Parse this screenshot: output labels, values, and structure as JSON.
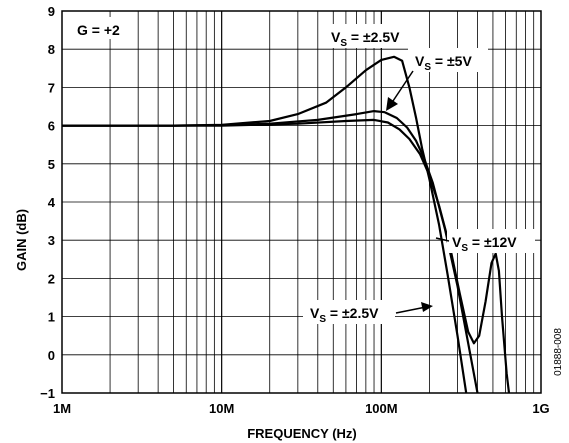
{
  "chart_data": {
    "type": "line",
    "xlabel": "FREQUENCY (Hz)",
    "ylabel": "GAIN (dB)",
    "xscale": "log",
    "xlim": [
      1000000,
      1000000000
    ],
    "ylim": [
      -1,
      9
    ],
    "x_tick_labels": [
      "1M",
      "10M",
      "100M",
      "1G"
    ],
    "x_tick_values": [
      1000000,
      10000000,
      100000000,
      1000000000
    ],
    "y_tick_labels": [
      "−1",
      "0",
      "1",
      "2",
      "3",
      "4",
      "5",
      "6",
      "7",
      "8",
      "9"
    ],
    "y_tick_values": [
      -1,
      0,
      1,
      2,
      3,
      4,
      5,
      6,
      7,
      8,
      9
    ],
    "grid": true,
    "annotations": {
      "gain_setting": "G = +2",
      "label_25v_top": {
        "prefix": "V",
        "sub": "S",
        "suffix": " = ±2.5V"
      },
      "label_5v": {
        "prefix": "V",
        "sub": "S",
        "suffix": " = ±5V"
      },
      "label_12v": {
        "prefix": "V",
        "sub": "S",
        "suffix": " = ±12V"
      },
      "label_25v_bottom": {
        "prefix": "V",
        "sub": "S",
        "suffix": " = ±2.5V"
      }
    },
    "figure_id": "01888-008",
    "series": [
      {
        "points": [
          [
            1000000,
            6.0
          ],
          [
            5000000,
            6.0
          ],
          [
            10000000,
            6.02
          ],
          [
            20000000,
            6.12
          ],
          [
            30000000,
            6.3
          ],
          [
            45000000,
            6.6
          ],
          [
            60000000,
            7.0
          ],
          [
            80000000,
            7.45
          ],
          [
            100000000,
            7.72
          ],
          [
            120000000,
            7.8
          ],
          [
            135000000,
            7.7
          ],
          [
            150000000,
            7.0
          ],
          [
            165000000,
            6.2
          ],
          [
            180000000,
            5.4
          ],
          [
            200000000,
            4.6
          ],
          [
            230000000,
            3.4
          ],
          [
            260000000,
            2.1
          ],
          [
            300000000,
            0.5
          ],
          [
            340000000,
            -1.0
          ]
        ]
      },
      {
        "points": [
          [
            1000000,
            6.0
          ],
          [
            5000000,
            6.0
          ],
          [
            10000000,
            6.01
          ],
          [
            20000000,
            6.05
          ],
          [
            40000000,
            6.15
          ],
          [
            70000000,
            6.3
          ],
          [
            90000000,
            6.38
          ],
          [
            105000000,
            6.35
          ],
          [
            125000000,
            6.2
          ],
          [
            145000000,
            5.95
          ],
          [
            165000000,
            5.6
          ],
          [
            185000000,
            5.15
          ],
          [
            210000000,
            4.5
          ],
          [
            250000000,
            3.3
          ],
          [
            300000000,
            1.8
          ],
          [
            350000000,
            0.3
          ],
          [
            400000000,
            -1.0
          ]
        ]
      },
      {
        "points": [
          [
            1000000,
            6.0
          ],
          [
            5000000,
            6.0
          ],
          [
            10000000,
            6.0
          ],
          [
            30000000,
            6.05
          ],
          [
            60000000,
            6.12
          ],
          [
            90000000,
            6.15
          ],
          [
            110000000,
            6.08
          ],
          [
            130000000,
            5.9
          ],
          [
            150000000,
            5.65
          ],
          [
            175000000,
            5.25
          ],
          [
            200000000,
            4.7
          ],
          [
            230000000,
            3.9
          ],
          [
            270000000,
            2.8
          ],
          [
            310000000,
            1.6
          ],
          [
            350000000,
            0.6
          ],
          [
            380000000,
            0.3
          ],
          [
            410000000,
            0.5
          ],
          [
            450000000,
            1.4
          ],
          [
            490000000,
            2.4
          ],
          [
            520000000,
            2.65
          ],
          [
            545000000,
            2.2
          ],
          [
            570000000,
            1.0
          ],
          [
            610000000,
            -0.5
          ],
          [
            630000000,
            -1.0
          ]
        ]
      }
    ]
  }
}
